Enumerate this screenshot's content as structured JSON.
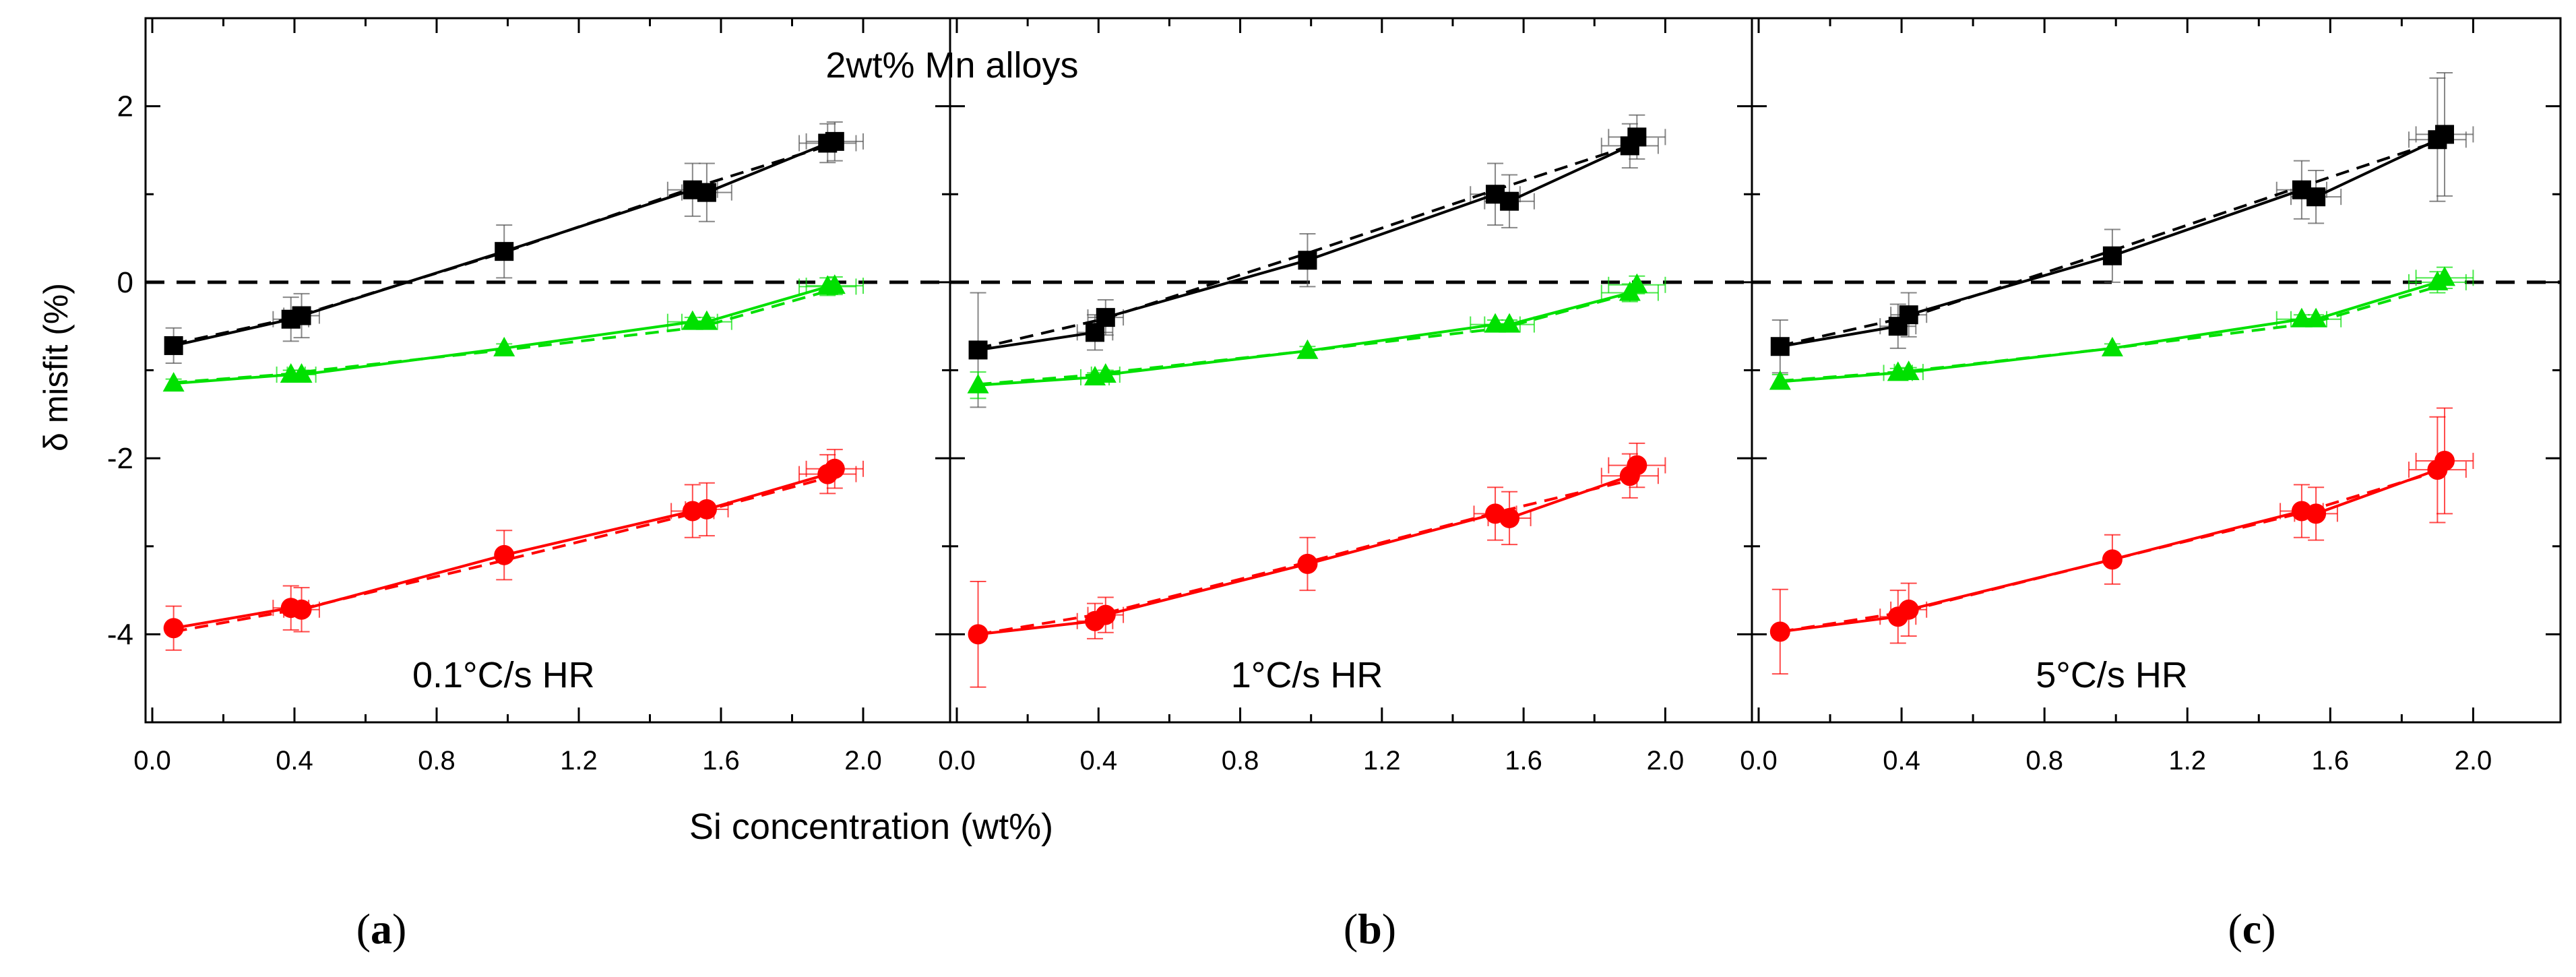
{
  "figure": {
    "ylabel": "δ misfit (%)",
    "xlabel": "Si concentration (wt%)",
    "header": "2wt% Mn alloys",
    "x_ticks": [
      "0.0",
      "0.4",
      "0.8",
      "1.2",
      "1.6",
      "2.0"
    ],
    "y_ticks": [
      "-4",
      "-2",
      "0",
      "2"
    ],
    "panel_letters": [
      "a",
      "b",
      "c"
    ],
    "colors": {
      "black_series": "#000000",
      "green_series": "#00e000",
      "red_series": "#ff0000",
      "zero_line": "#000000"
    }
  },
  "chart_data": [
    {
      "type": "scatter",
      "panel": "a",
      "label": "0.1°C/s HR",
      "xlabel": "Si concentration (wt%)",
      "ylabel": "δ misfit (%)",
      "xlim": [
        0.0,
        2.2
      ],
      "ylim": [
        -5.0,
        3.0
      ],
      "reference_line": 0,
      "series": [
        {
          "name": "black",
          "color": "#000000",
          "marker": "square",
          "x": [
            0.06,
            0.39,
            0.42,
            0.99,
            1.52,
            1.56,
            1.9,
            1.92
          ],
          "y": [
            -0.72,
            -0.42,
            -0.38,
            0.35,
            1.05,
            1.02,
            1.58,
            1.6
          ],
          "fit": [
            -0.7,
            -0.41,
            -0.37,
            0.34,
            1.07,
            1.12,
            1.55,
            1.57
          ],
          "xerr": [
            0,
            0.05,
            0.05,
            0,
            0.07,
            0.07,
            0.08,
            0.08
          ],
          "yerr": [
            0.2,
            0.25,
            0.25,
            0.3,
            0.3,
            0.33,
            0.22,
            0.22
          ]
        },
        {
          "name": "green",
          "color": "#00e000",
          "marker": "triangle",
          "x": [
            0.06,
            0.39,
            0.42,
            0.99,
            1.52,
            1.56,
            1.9,
            1.92
          ],
          "y": [
            -1.15,
            -1.05,
            -1.05,
            -0.75,
            -0.45,
            -0.45,
            -0.05,
            -0.04
          ],
          "fit": [
            -1.14,
            -1.04,
            -1.02,
            -0.77,
            -0.52,
            -0.49,
            -0.1,
            -0.08
          ],
          "xerr": [
            0,
            0.04,
            0.04,
            0,
            0.07,
            0.07,
            0.08,
            0.08
          ],
          "yerr": [
            0.05,
            0.05,
            0.05,
            0.05,
            0.05,
            0.05,
            0.1,
            0.1
          ]
        },
        {
          "name": "red",
          "color": "#ff0000",
          "marker": "circle",
          "x": [
            0.06,
            0.39,
            0.42,
            0.99,
            1.52,
            1.56,
            1.9,
            1.92
          ],
          "y": [
            -3.93,
            -3.7,
            -3.72,
            -3.1,
            -2.6,
            -2.58,
            -2.18,
            -2.12
          ],
          "fit": [
            -3.97,
            -3.73,
            -3.71,
            -3.16,
            -2.63,
            -2.59,
            -2.22,
            -2.18
          ],
          "xerr": [
            0,
            0.05,
            0.05,
            0,
            0.06,
            0.06,
            0.08,
            0.08
          ],
          "yerr": [
            0.25,
            0.25,
            0.25,
            0.28,
            0.3,
            0.3,
            0.22,
            0.22
          ]
        }
      ]
    },
    {
      "type": "scatter",
      "panel": "b",
      "label": "1°C/s HR",
      "xlabel": "Si concentration (wt%)",
      "ylabel": "δ misfit (%)",
      "xlim": [
        0.0,
        2.2
      ],
      "ylim": [
        -5.0,
        3.0
      ],
      "reference_line": 0,
      "series": [
        {
          "name": "black",
          "color": "#000000",
          "marker": "square",
          "x": [
            0.06,
            0.39,
            0.42,
            0.99,
            1.52,
            1.56,
            1.9,
            1.92
          ],
          "y": [
            -0.77,
            -0.57,
            -0.4,
            0.25,
            1.0,
            0.92,
            1.55,
            1.65
          ],
          "fit": [
            -0.75,
            -0.44,
            -0.41,
            0.33,
            1.05,
            1.1,
            1.55,
            1.58
          ],
          "xerr": [
            0,
            0.05,
            0.05,
            0,
            0.07,
            0.07,
            0.08,
            0.08
          ],
          "yerr": [
            0.65,
            0.2,
            0.2,
            0.3,
            0.35,
            0.3,
            0.25,
            0.25
          ]
        },
        {
          "name": "green",
          "color": "#00e000",
          "marker": "triangle",
          "x": [
            0.06,
            0.39,
            0.42,
            0.99,
            1.52,
            1.56,
            1.9,
            1.92
          ],
          "y": [
            -1.17,
            -1.08,
            -1.05,
            -0.78,
            -0.48,
            -0.48,
            -0.12,
            -0.03
          ],
          "fit": [
            -1.16,
            -1.05,
            -1.03,
            -0.78,
            -0.53,
            -0.5,
            -0.13,
            -0.1
          ],
          "xerr": [
            0,
            0.04,
            0.04,
            0,
            0.07,
            0.07,
            0.08,
            0.08
          ],
          "yerr": [
            0.15,
            0.05,
            0.05,
            0.05,
            0.05,
            0.05,
            0.1,
            0.1
          ]
        },
        {
          "name": "red",
          "color": "#ff0000",
          "marker": "circle",
          "x": [
            0.06,
            0.39,
            0.42,
            0.99,
            1.52,
            1.56,
            1.9,
            1.92
          ],
          "y": [
            -4.0,
            -3.85,
            -3.78,
            -3.2,
            -2.63,
            -2.68,
            -2.2,
            -2.08
          ],
          "fit": [
            -4.0,
            -3.78,
            -3.76,
            -3.18,
            -2.62,
            -2.58,
            -2.25,
            -2.2
          ],
          "xerr": [
            0,
            0.05,
            0.05,
            0,
            0.06,
            0.06,
            0.08,
            0.08
          ],
          "yerr": [
            0.6,
            0.2,
            0.2,
            0.3,
            0.3,
            0.3,
            0.25,
            0.25
          ]
        }
      ]
    },
    {
      "type": "scatter",
      "panel": "c",
      "label": "5°C/s HR",
      "xlabel": "Si concentration (wt%)",
      "ylabel": "δ misfit (%)",
      "xlim": [
        0.0,
        2.2
      ],
      "ylim": [
        -5.0,
        3.0
      ],
      "reference_line": 0,
      "series": [
        {
          "name": "black",
          "color": "#000000",
          "marker": "square",
          "x": [
            0.06,
            0.39,
            0.42,
            0.99,
            1.52,
            1.56,
            1.9,
            1.92
          ],
          "y": [
            -0.73,
            -0.5,
            -0.37,
            0.3,
            1.05,
            0.97,
            1.62,
            1.68
          ],
          "fit": [
            -0.72,
            -0.42,
            -0.4,
            0.36,
            1.09,
            1.14,
            1.6,
            1.62
          ],
          "xerr": [
            0,
            0.05,
            0.05,
            0,
            0.07,
            0.07,
            0.08,
            0.08
          ],
          "yerr": [
            0.3,
            0.25,
            0.25,
            0.3,
            0.33,
            0.3,
            0.7,
            0.7
          ]
        },
        {
          "name": "green",
          "color": "#00e000",
          "marker": "triangle",
          "x": [
            0.06,
            0.39,
            0.42,
            0.99,
            1.52,
            1.56,
            1.9,
            1.92
          ],
          "y": [
            -1.13,
            -1.03,
            -1.02,
            -0.75,
            -0.42,
            -0.42,
            0.0,
            0.05
          ],
          "fit": [
            -1.12,
            -1.02,
            -1.01,
            -0.75,
            -0.48,
            -0.45,
            -0.05,
            -0.03
          ],
          "xerr": [
            0,
            0.04,
            0.04,
            0,
            0.07,
            0.07,
            0.08,
            0.08
          ],
          "yerr": [
            0.08,
            0.05,
            0.05,
            0.05,
            0.05,
            0.05,
            0.12,
            0.12
          ]
        },
        {
          "name": "red",
          "color": "#ff0000",
          "marker": "circle",
          "x": [
            0.06,
            0.39,
            0.42,
            0.99,
            1.52,
            1.56,
            1.9,
            1.92
          ],
          "y": [
            -3.97,
            -3.8,
            -3.72,
            -3.15,
            -2.6,
            -2.63,
            -2.13,
            -2.03
          ],
          "fit": [
            -3.97,
            -3.76,
            -3.73,
            -3.15,
            -2.62,
            -2.57,
            -2.15,
            -2.1
          ],
          "xerr": [
            0,
            0.05,
            0.05,
            0,
            0.06,
            0.06,
            0.08,
            0.08
          ],
          "yerr": [
            0.48,
            0.3,
            0.3,
            0.28,
            0.3,
            0.3,
            0.6,
            0.6
          ]
        }
      ]
    }
  ]
}
